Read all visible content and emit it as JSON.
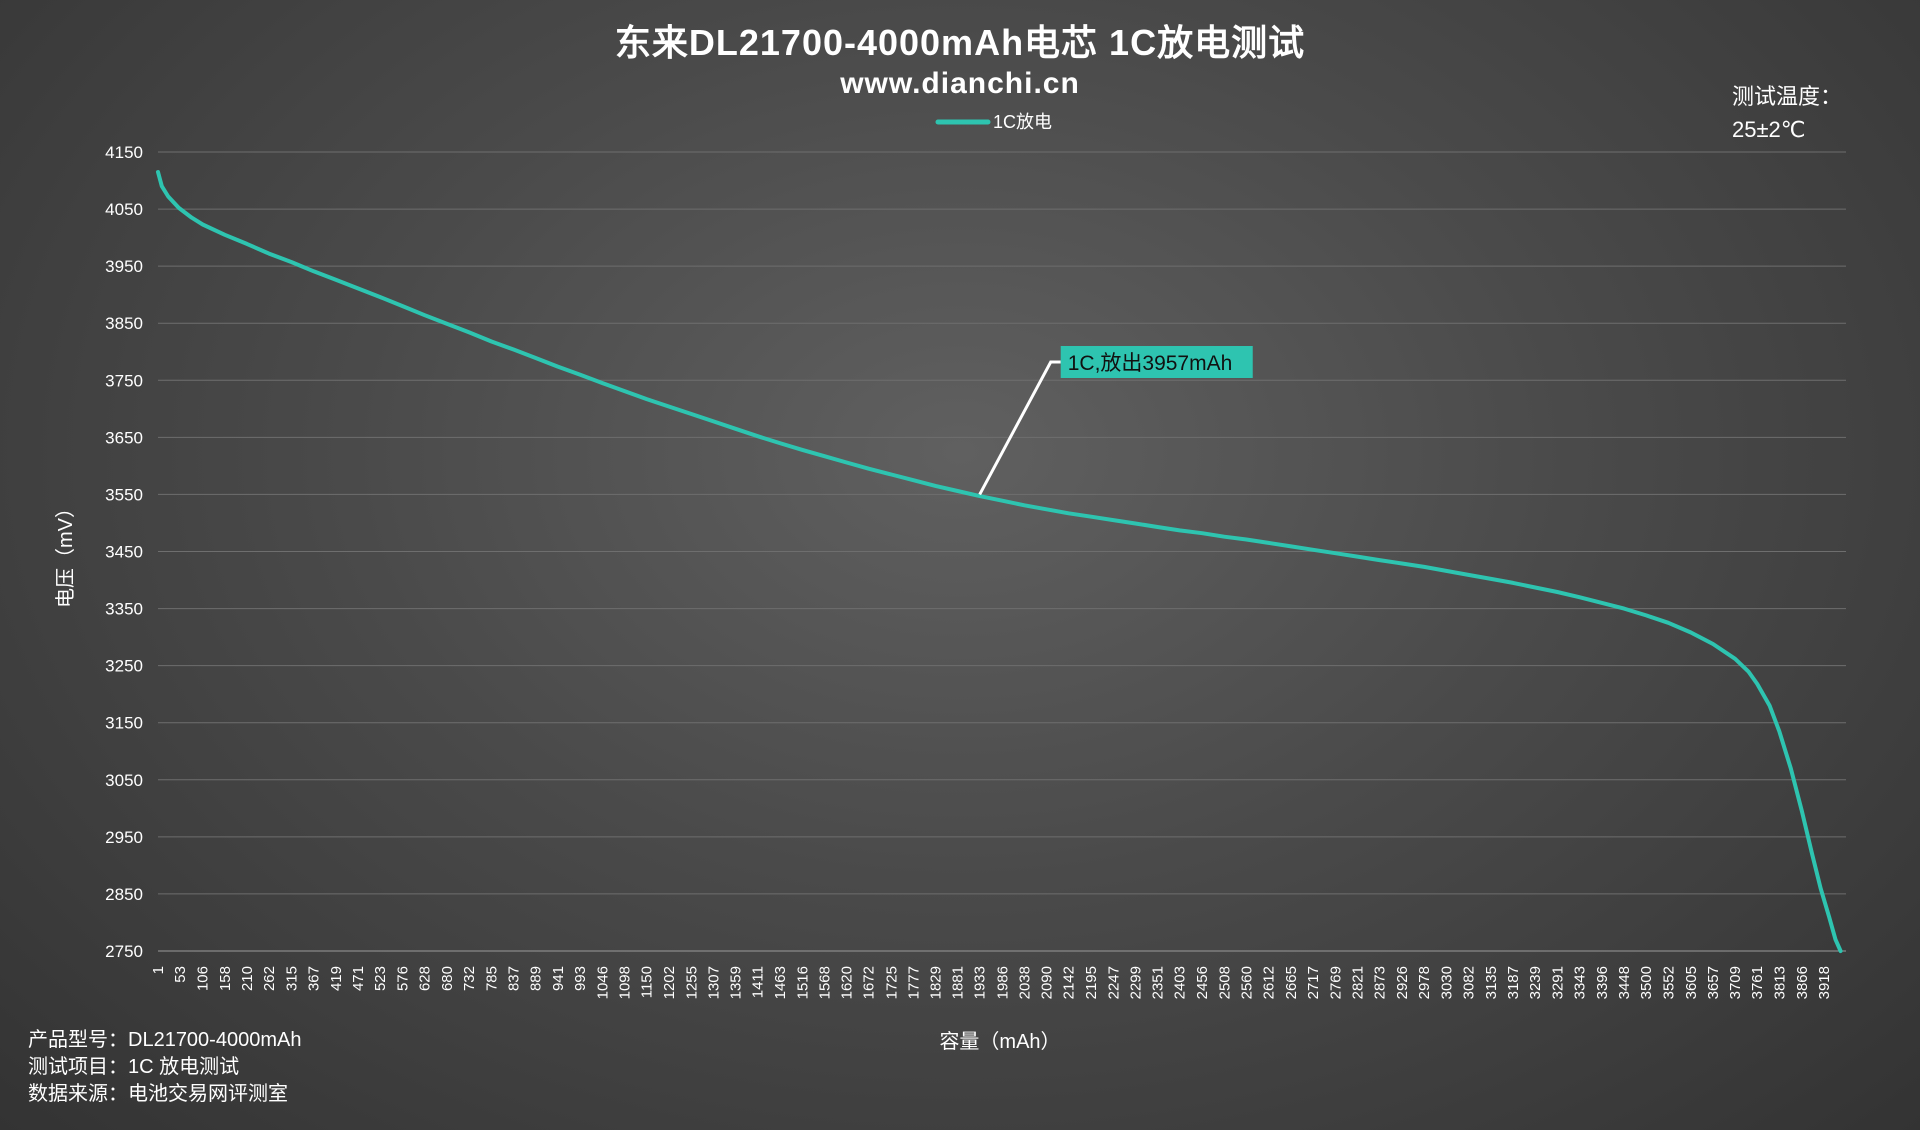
{
  "chart_data": {
    "type": "line",
    "title": "东来DL21700-4000mAh电芯 1C放电测试",
    "subtitle": "www.dianchi.cn",
    "xlabel": "容量（mAh）",
    "ylabel": "电压（mV）",
    "ylim": [
      2750,
      4150
    ],
    "yticks": [
      4150,
      4050,
      3950,
      3850,
      3750,
      3650,
      3550,
      3450,
      3350,
      3250,
      3150,
      3050,
      2950,
      2850,
      2750
    ],
    "xlim": [
      1,
      3957
    ],
    "xticks": [
      1,
      53,
      106,
      158,
      210,
      262,
      315,
      367,
      419,
      471,
      523,
      576,
      628,
      680,
      732,
      785,
      837,
      889,
      941,
      993,
      1046,
      1098,
      1150,
      1202,
      1255,
      1307,
      1359,
      1411,
      1463,
      1516,
      1568,
      1620,
      1672,
      1725,
      1777,
      1829,
      1881,
      1933,
      1986,
      2038,
      2090,
      2142,
      2195,
      2247,
      2299,
      2351,
      2403,
      2456,
      2508,
      2560,
      2612,
      2665,
      2717,
      2769,
      2821,
      2873,
      2926,
      2978,
      3030,
      3082,
      3135,
      3187,
      3239,
      3291,
      3343,
      3396,
      3448,
      3500,
      3552,
      3605,
      3657,
      3709,
      3761,
      3813,
      3866,
      3918
    ],
    "grid": true,
    "legend": "top-center",
    "series": [
      {
        "name": "1C放电",
        "color": "#2ec4b0",
        "x": [
          1,
          10,
          25,
          50,
          80,
          106,
          158,
          210,
          262,
          315,
          367,
          419,
          471,
          523,
          576,
          628,
          680,
          732,
          785,
          837,
          889,
          941,
          993,
          1046,
          1098,
          1150,
          1202,
          1255,
          1307,
          1359,
          1411,
          1463,
          1516,
          1568,
          1620,
          1672,
          1725,
          1777,
          1829,
          1881,
          1933,
          1986,
          2038,
          2090,
          2142,
          2195,
          2247,
          2299,
          2351,
          2403,
          2456,
          2508,
          2560,
          2612,
          2665,
          2717,
          2769,
          2821,
          2873,
          2926,
          2978,
          3030,
          3082,
          3135,
          3187,
          3239,
          3291,
          3343,
          3396,
          3448,
          3500,
          3552,
          3605,
          3657,
          3709,
          3740,
          3761,
          3790,
          3813,
          3840,
          3866,
          3890,
          3910,
          3930,
          3945,
          3957
        ],
        "y": [
          4115,
          4090,
          4072,
          4052,
          4035,
          4023,
          4005,
          3989,
          3972,
          3957,
          3941,
          3926,
          3911,
          3896,
          3880,
          3864,
          3849,
          3834,
          3818,
          3804,
          3789,
          3774,
          3760,
          3745,
          3731,
          3717,
          3704,
          3691,
          3678,
          3665,
          3652,
          3640,
          3628,
          3617,
          3606,
          3595,
          3585,
          3575,
          3565,
          3556,
          3547,
          3539,
          3531,
          3524,
          3517,
          3511,
          3505,
          3499,
          3493,
          3487,
          3482,
          3476,
          3471,
          3465,
          3459,
          3453,
          3447,
          3441,
          3435,
          3429,
          3423,
          3416,
          3409,
          3402,
          3395,
          3387,
          3379,
          3370,
          3360,
          3350,
          3338,
          3325,
          3308,
          3288,
          3262,
          3240,
          3218,
          3180,
          3135,
          3070,
          2995,
          2920,
          2860,
          2810,
          2770,
          2750
        ]
      }
    ],
    "annotation": {
      "text": "1C,放出3957mAh",
      "x": 1933,
      "y": 3550
    },
    "note": {
      "line1": "测试温度：",
      "line2": "25±2℃"
    },
    "info": [
      {
        "label": "产品型号：",
        "value": "DL21700-4000mAh"
      },
      {
        "label": "测试项目：",
        "value": "1C 放电测试"
      },
      {
        "label": "数据来源：",
        "value": "电池交易网评测室"
      }
    ]
  }
}
